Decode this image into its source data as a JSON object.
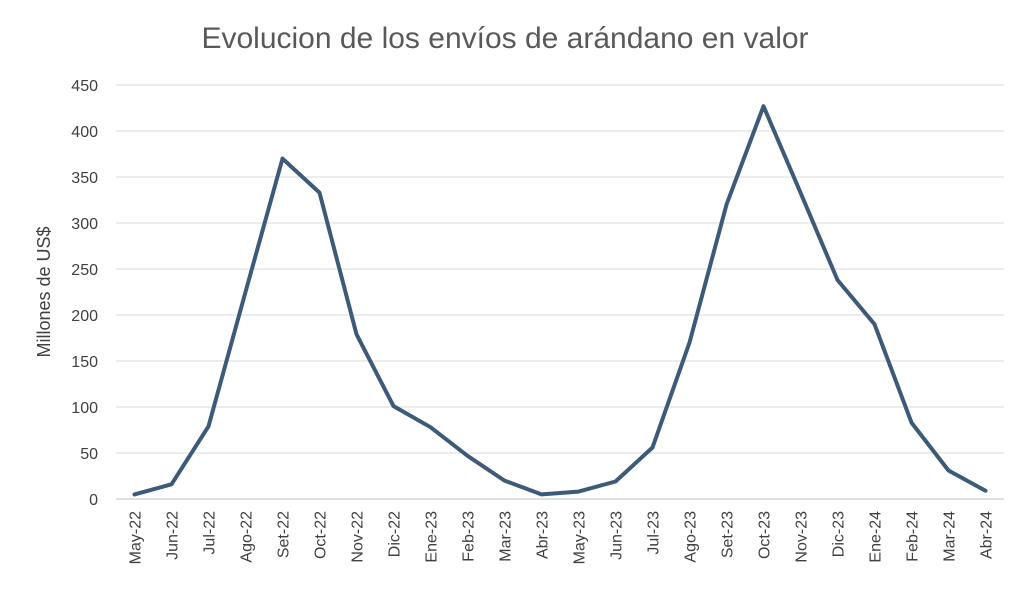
{
  "chart_data": {
    "type": "line",
    "title": "Evolucion de los envíos de arándano en valor",
    "xlabel": "",
    "ylabel": "Millones de US$",
    "ylim": [
      0,
      450
    ],
    "yticks": [
      0,
      50,
      100,
      150,
      200,
      250,
      300,
      350,
      400,
      450
    ],
    "grid": true,
    "categories": [
      "May-22",
      "Jun-22",
      "Jul-22",
      "Ago-22",
      "Set-22",
      "Oct-22",
      "Nov-22",
      "Dic-22",
      "Ene-23",
      "Feb-23",
      "Mar-23",
      "Abr-23",
      "May-23",
      "Jun-23",
      "Jul-23",
      "Ago-23",
      "Set-23",
      "Oct-23",
      "Nov-23",
      "Dic-23",
      "Ene-24",
      "Feb-24",
      "Mar-24",
      "Abr-24"
    ],
    "series": [
      {
        "color": "#3d5a78",
        "values": [
          5,
          16,
          79,
          225,
          370,
          333,
          179,
          101,
          78,
          47,
          20,
          5,
          8,
          19,
          56,
          170,
          320,
          427,
          333,
          238,
          190,
          83,
          31,
          9
        ]
      }
    ]
  }
}
